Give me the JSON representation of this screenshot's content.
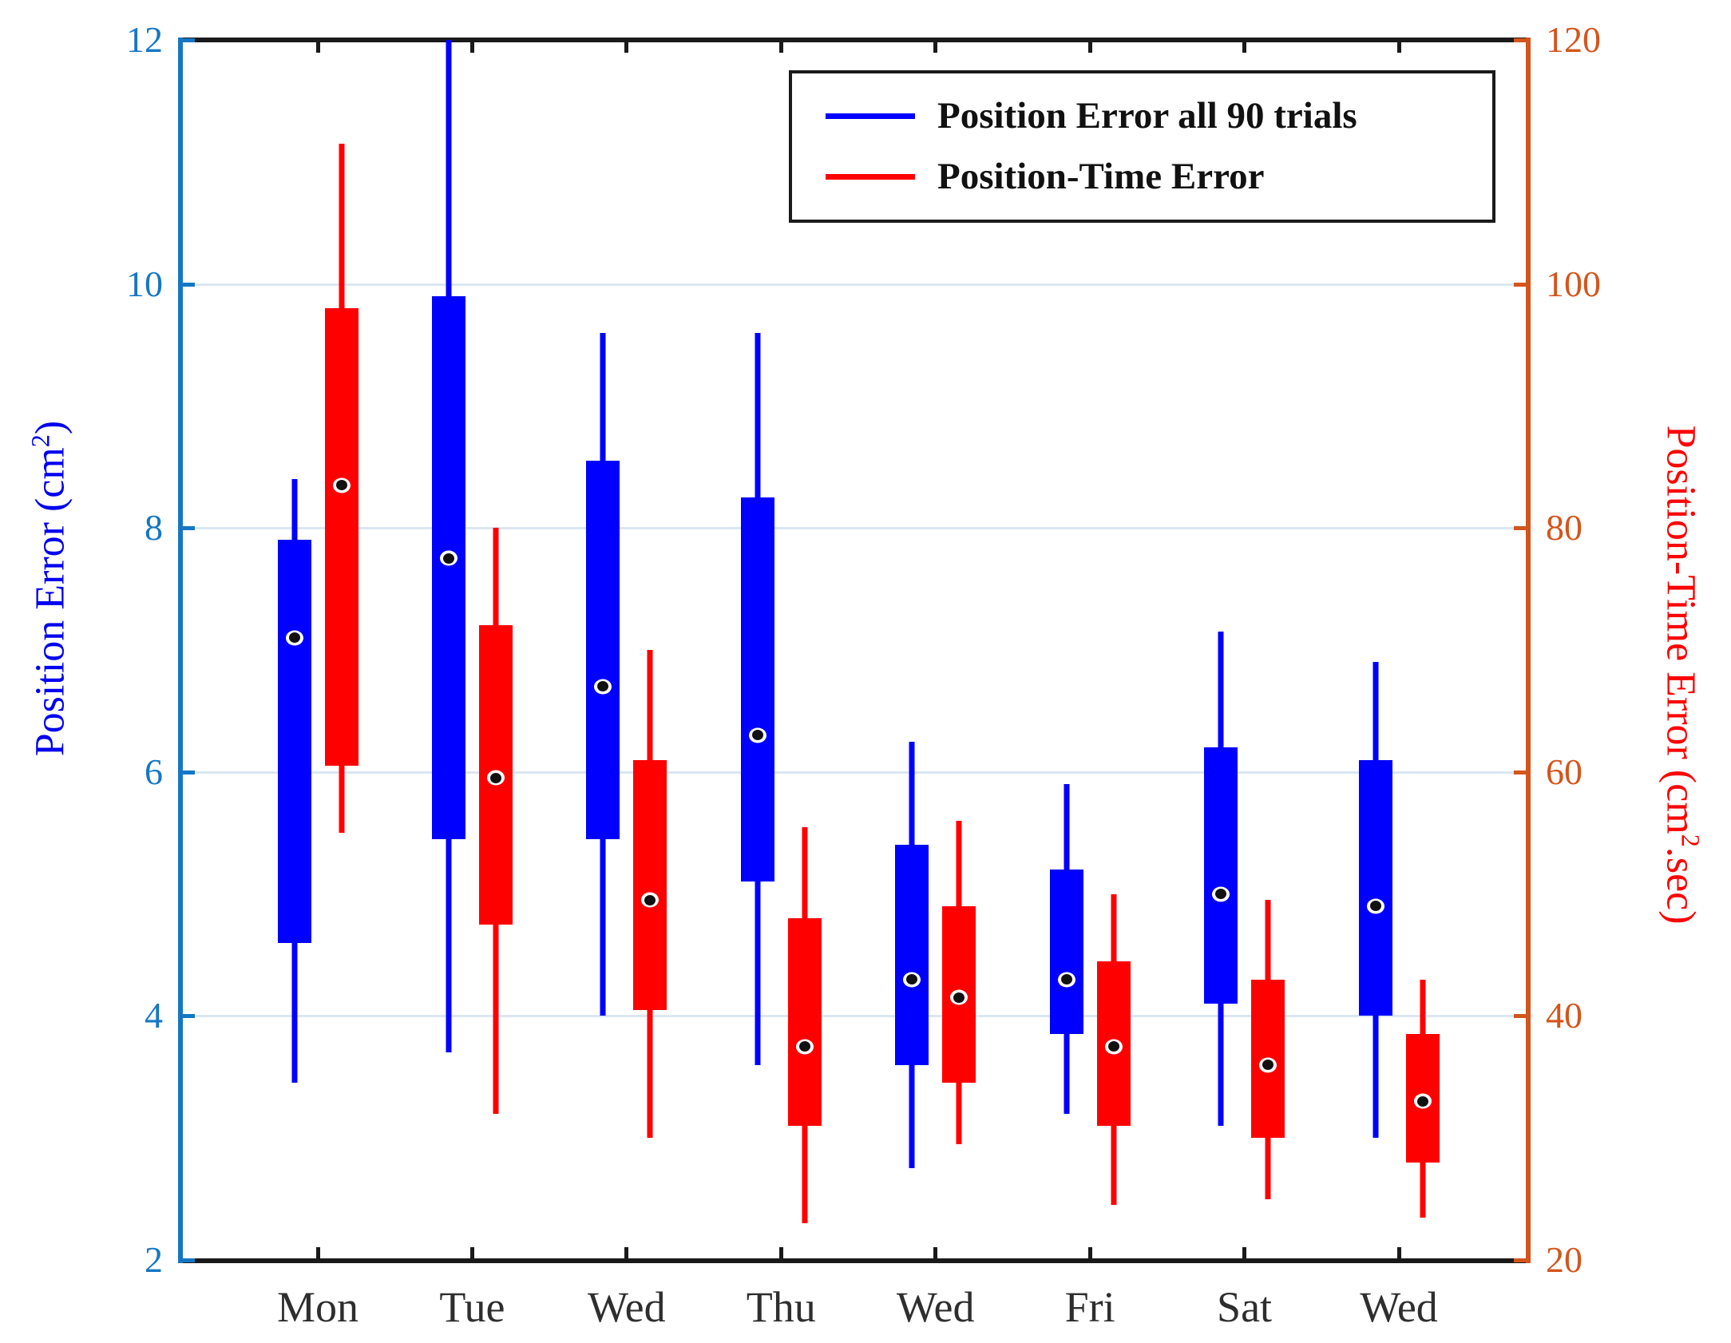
{
  "legend": {
    "items": [
      {
        "label": "Position Error all 90 trials",
        "color": "#0000ff"
      },
      {
        "label": "Position-Time Error",
        "color": "#ff0000"
      }
    ]
  },
  "axes": {
    "left": {
      "label_pre": "Position Error (cm",
      "label_sup": "2",
      "label_post": ")",
      "tick_color": "#1577c3",
      "label_color": "#0000ee"
    },
    "right": {
      "label_pre": "Position-Time Error (cm",
      "label_sup": "2",
      "label_post": ".sec)",
      "tick_color": "#d4551c",
      "label_color": "#ff0000"
    }
  },
  "chart_data": {
    "type": "boxplot",
    "dual_axis": true,
    "grid": "horizontal",
    "legend_position": "top-right",
    "categories": [
      "Mon",
      "Tue",
      "Wed",
      "Thu",
      "Wed",
      "Fri",
      "Sat",
      "Wed"
    ],
    "left_axis": {
      "title": "Position Error (cm2)",
      "range": [
        2,
        12
      ],
      "ticks": [
        2,
        4,
        6,
        8,
        10,
        12
      ],
      "gridlines": [
        4,
        6,
        8,
        10
      ]
    },
    "right_axis": {
      "title": "Position-Time Error (cm2.sec)",
      "range": [
        20,
        120
      ],
      "ticks": [
        20,
        40,
        60,
        80,
        100,
        120
      ]
    },
    "series": [
      {
        "name": "Position Error all 90 trials",
        "axis": "left",
        "color": "#0000ff",
        "boxes": [
          {
            "whislo": 3.45,
            "q1": 4.6,
            "med": 7.1,
            "q3": 7.9,
            "whishi": 8.4
          },
          {
            "whislo": 3.7,
            "q1": 5.45,
            "med": 7.75,
            "q3": 9.9,
            "whishi": 12.0
          },
          {
            "whislo": 4.0,
            "q1": 5.45,
            "med": 6.7,
            "q3": 8.55,
            "whishi": 9.6
          },
          {
            "whislo": 3.6,
            "q1": 5.1,
            "med": 6.3,
            "q3": 8.25,
            "whishi": 9.6
          },
          {
            "whislo": 2.75,
            "q1": 3.6,
            "med": 4.3,
            "q3": 5.4,
            "whishi": 6.25
          },
          {
            "whislo": 3.2,
            "q1": 3.85,
            "med": 4.3,
            "q3": 5.2,
            "whishi": 5.9
          },
          {
            "whislo": 3.1,
            "q1": 4.1,
            "med": 5.0,
            "q3": 6.2,
            "whishi": 7.15
          },
          {
            "whislo": 3.0,
            "q1": 4.0,
            "med": 4.9,
            "q3": 6.1,
            "whishi": 6.9
          }
        ]
      },
      {
        "name": "Position-Time Error",
        "axis": "right",
        "color": "#ff0000",
        "boxes": [
          {
            "whislo": 55,
            "q1": 60.5,
            "med": 83.5,
            "q3": 98,
            "whishi": 111.5
          },
          {
            "whislo": 32,
            "q1": 47.5,
            "med": 59.5,
            "q3": 72,
            "whishi": 80
          },
          {
            "whislo": 30,
            "q1": 40.5,
            "med": 49.5,
            "q3": 61,
            "whishi": 70
          },
          {
            "whislo": 23,
            "q1": 31,
            "med": 37.5,
            "q3": 48,
            "whishi": 55.5
          },
          {
            "whislo": 29.5,
            "q1": 34.5,
            "med": 41.5,
            "q3": 49,
            "whishi": 56
          },
          {
            "whislo": 24.5,
            "q1": 31,
            "med": 37.5,
            "q3": 44.5,
            "whishi": 50
          },
          {
            "whislo": 25,
            "q1": 30,
            "med": 36,
            "q3": 43,
            "whishi": 49.5
          },
          {
            "whislo": 23.5,
            "q1": 28,
            "med": 33,
            "q3": 38.5,
            "whishi": 43
          }
        ]
      }
    ]
  }
}
